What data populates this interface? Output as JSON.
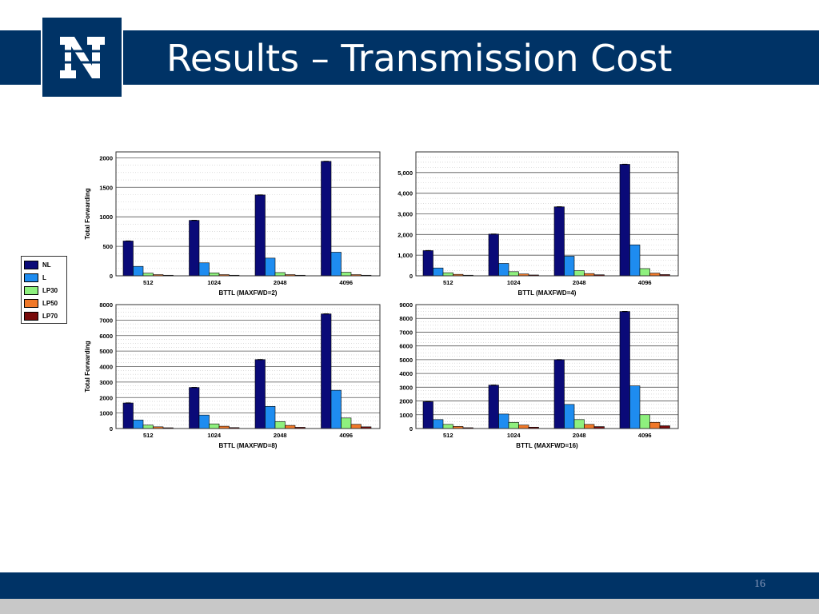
{
  "slide": {
    "title": "Results – Transmission Cost",
    "page_number": "16",
    "colors": {
      "header": "#003366",
      "footer_strip": "#c8c8c8",
      "logo_mark": "#ffffff"
    }
  },
  "legend": {
    "items": [
      {
        "label": "NL",
        "color": "#0a0a78"
      },
      {
        "label": "L",
        "color": "#1e8cf0"
      },
      {
        "label": "LP30",
        "color": "#8ef07e"
      },
      {
        "label": "LP50",
        "color": "#f07828"
      },
      {
        "label": "LP70",
        "color": "#780a0a"
      }
    ]
  },
  "chart_data": [
    {
      "type": "bar",
      "categories": [
        "512",
        "1024",
        "2048",
        "4096"
      ],
      "xlabel": "BTTL (MAXFWD=2)",
      "ylabel": "Total Forwarding",
      "ylim": [
        0,
        2100
      ],
      "yticks": [
        0,
        500,
        1000,
        1500,
        2000
      ],
      "ytick_labels": [
        "0",
        "500",
        "1000",
        "1500",
        "2000"
      ],
      "grid": true,
      "series": [
        {
          "name": "NL",
          "values": [
            590,
            940,
            1370,
            1940
          ]
        },
        {
          "name": "L",
          "values": [
            160,
            220,
            300,
            400
          ]
        },
        {
          "name": "LP30",
          "values": [
            45,
            50,
            55,
            60
          ]
        },
        {
          "name": "LP50",
          "values": [
            20,
            20,
            20,
            20
          ]
        },
        {
          "name": "LP70",
          "values": [
            10,
            10,
            10,
            10
          ]
        }
      ]
    },
    {
      "type": "bar",
      "categories": [
        "512",
        "1024",
        "2048",
        "4096"
      ],
      "xlabel": "BTTL (MAXFWD=4)",
      "ylabel": "",
      "ylim": [
        0,
        6000
      ],
      "yticks": [
        0,
        1000,
        2000,
        3000,
        4000,
        5000
      ],
      "ytick_labels": [
        "0",
        "1,000",
        "2,000",
        "3,000",
        "4,000",
        "5,000"
      ],
      "grid": true,
      "series": [
        {
          "name": "NL",
          "values": [
            1220,
            2020,
            3340,
            5400
          ]
        },
        {
          "name": "L",
          "values": [
            380,
            600,
            950,
            1500
          ]
        },
        {
          "name": "LP30",
          "values": [
            150,
            200,
            250,
            350
          ]
        },
        {
          "name": "LP50",
          "values": [
            70,
            90,
            110,
            130
          ]
        },
        {
          "name": "LP70",
          "values": [
            30,
            40,
            50,
            60
          ]
        }
      ]
    },
    {
      "type": "bar",
      "categories": [
        "512",
        "1024",
        "2048",
        "4096"
      ],
      "xlabel": "BTTL (MAXFWD=8)",
      "ylabel": "Total Forwarding",
      "ylim": [
        0,
        8000
      ],
      "yticks": [
        0,
        1000,
        2000,
        3000,
        4000,
        5000,
        6000,
        7000,
        8000
      ],
      "ytick_labels": [
        "0",
        "1000",
        "2000",
        "3000",
        "4000",
        "5000",
        "6000",
        "7000",
        "8000"
      ],
      "grid": true,
      "series": [
        {
          "name": "NL",
          "values": [
            1650,
            2650,
            4450,
            7400
          ]
        },
        {
          "name": "L",
          "values": [
            550,
            870,
            1430,
            2470
          ]
        },
        {
          "name": "LP30",
          "values": [
            220,
            300,
            450,
            680
          ]
        },
        {
          "name": "LP50",
          "values": [
            110,
            150,
            200,
            270
          ]
        },
        {
          "name": "LP70",
          "values": [
            50,
            60,
            80,
            110
          ]
        }
      ]
    },
    {
      "type": "bar",
      "categories": [
        "512",
        "1024",
        "2048",
        "4096"
      ],
      "xlabel": "BTTL (MAXFWD=16)",
      "ylabel": "",
      "ylim": [
        0,
        9000
      ],
      "yticks": [
        0,
        1000,
        2000,
        3000,
        4000,
        5000,
        6000,
        7000,
        8000,
        9000
      ],
      "ytick_labels": [
        "0",
        "1000",
        "2000",
        "3000",
        "4000",
        "5000",
        "6000",
        "7000",
        "8000",
        "9000"
      ],
      "grid": true,
      "series": [
        {
          "name": "NL",
          "values": [
            1950,
            3150,
            5000,
            8500
          ]
        },
        {
          "name": "L",
          "values": [
            650,
            1050,
            1750,
            3100
          ]
        },
        {
          "name": "LP30",
          "values": [
            300,
            450,
            650,
            1000
          ]
        },
        {
          "name": "LP50",
          "values": [
            150,
            250,
            300,
            450
          ]
        },
        {
          "name": "LP70",
          "values": [
            60,
            100,
            140,
            200
          ]
        }
      ]
    }
  ]
}
